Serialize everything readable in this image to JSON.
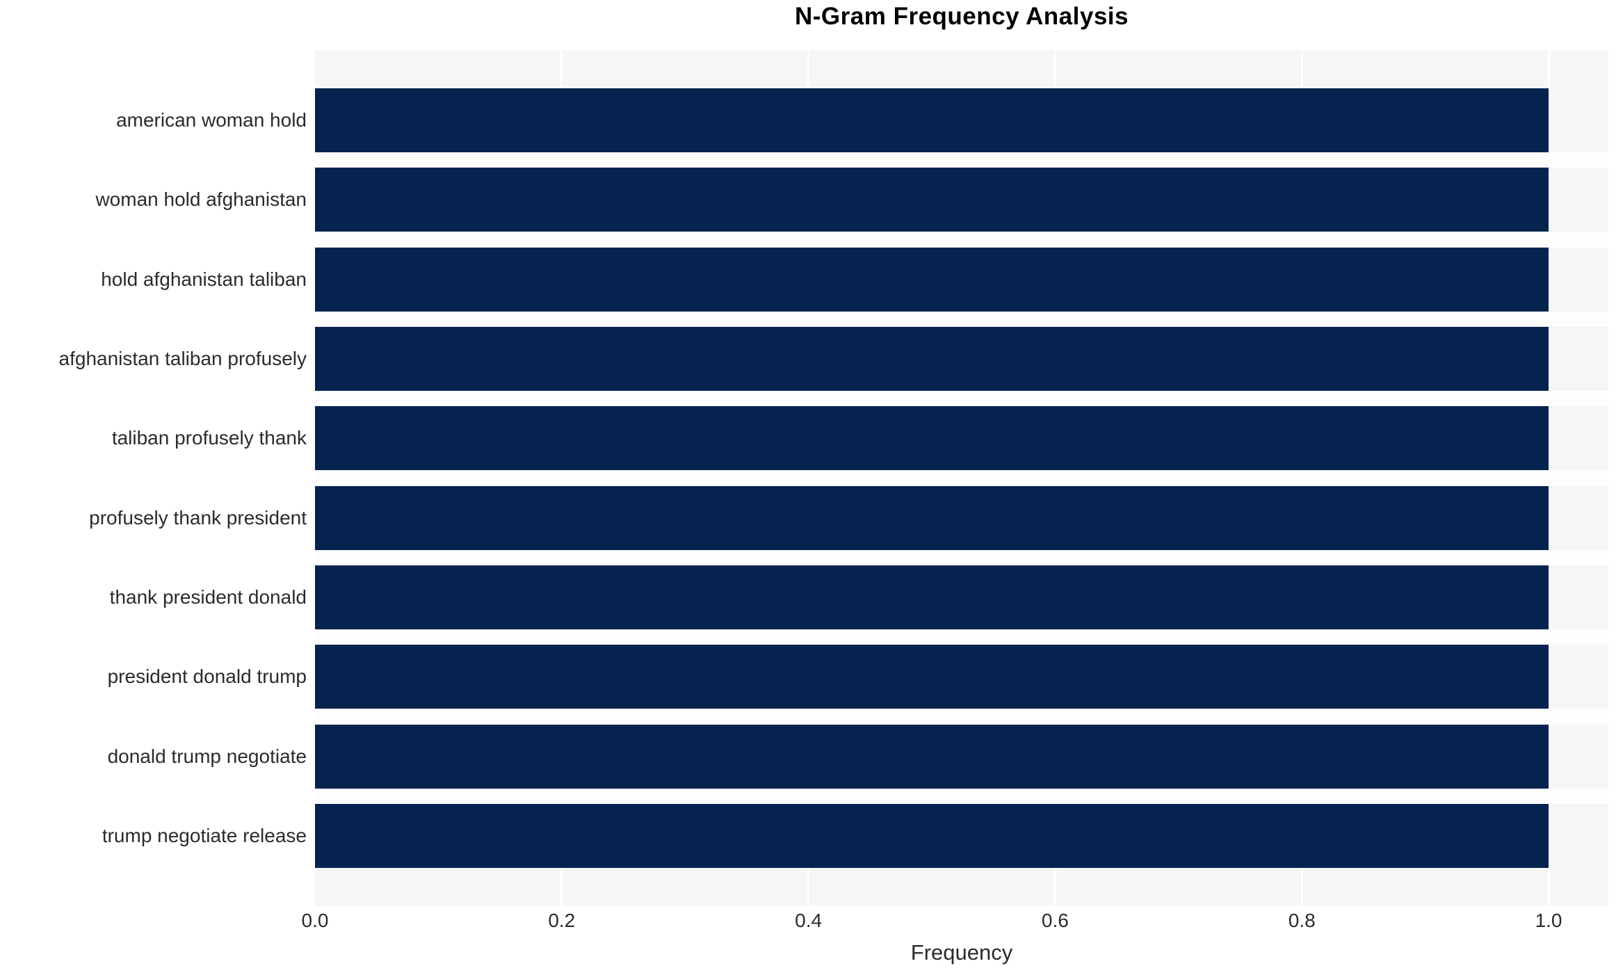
{
  "chart_data": {
    "type": "bar",
    "orientation": "horizontal",
    "title": "N-Gram Frequency Analysis",
    "xlabel": "Frequency",
    "ylabel": "",
    "categories": [
      "american woman hold",
      "woman hold afghanistan",
      "hold afghanistan taliban",
      "afghanistan taliban profusely",
      "taliban profusely thank",
      "profusely thank president",
      "thank president donald",
      "president donald trump",
      "donald trump negotiate",
      "trump negotiate release"
    ],
    "values": [
      1.0,
      1.0,
      1.0,
      1.0,
      1.0,
      1.0,
      1.0,
      1.0,
      1.0,
      1.0
    ],
    "xticks": [
      "0.0",
      "0.2",
      "0.4",
      "0.6",
      "0.8",
      "1.0"
    ],
    "xlim": [
      0,
      1.048
    ],
    "grid": true,
    "legend": false,
    "colors": {
      "bar": "#05234e",
      "plot_background": "#f6f6f6",
      "gridline": "#ffffff",
      "row_gap": "#fdfdfd",
      "text": "#2b2b2b",
      "title_text": "#000000"
    }
  }
}
